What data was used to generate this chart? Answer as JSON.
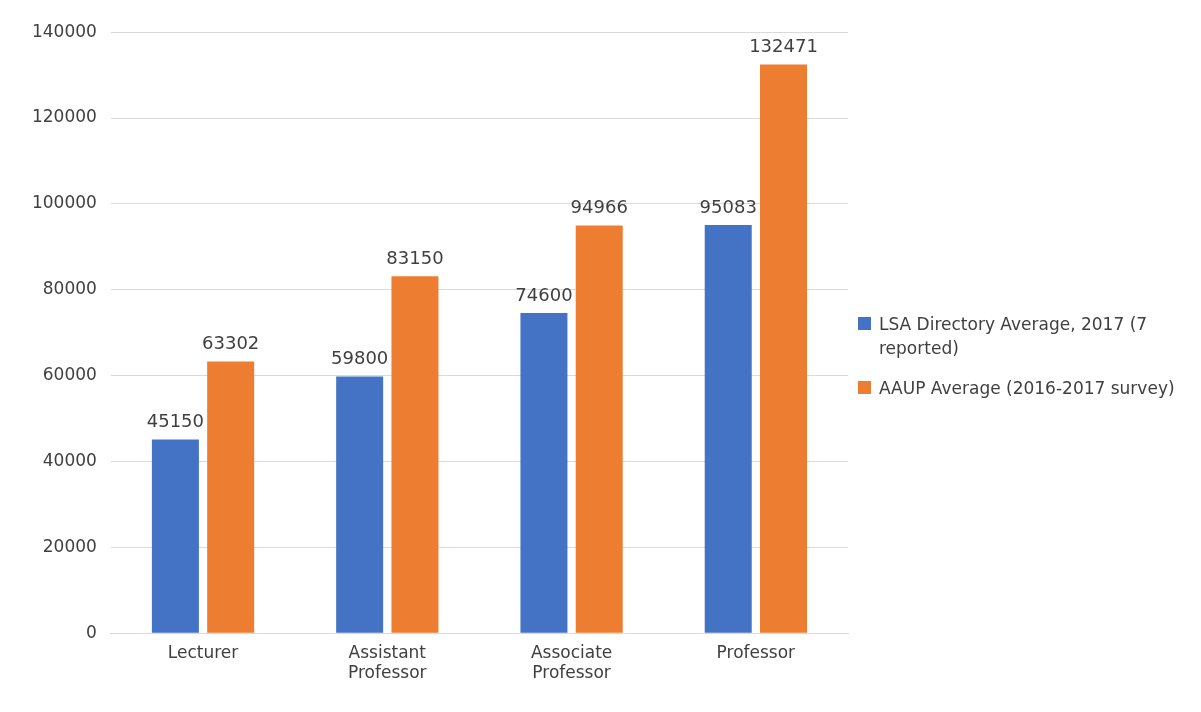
{
  "chart_data": {
    "type": "bar",
    "categories": [
      "Lecturer",
      "Assistant Professor",
      "Associate Professor",
      "Professor"
    ],
    "series": [
      {
        "name": "LSA Directory Average, 2017 (7 reported)",
        "color": "#4472c4",
        "values": [
          45150,
          59800,
          74600,
          95083
        ]
      },
      {
        "name": "AAUP Average (2016-2017 survey)",
        "color": "#ed7d31",
        "values": [
          63302,
          83150,
          94966,
          132471
        ]
      }
    ],
    "ylim": [
      0,
      140000
    ],
    "yticks": [
      0,
      20000,
      40000,
      60000,
      80000,
      100000,
      120000,
      140000
    ],
    "grid": "y",
    "legend": "right",
    "data_labels": true
  }
}
